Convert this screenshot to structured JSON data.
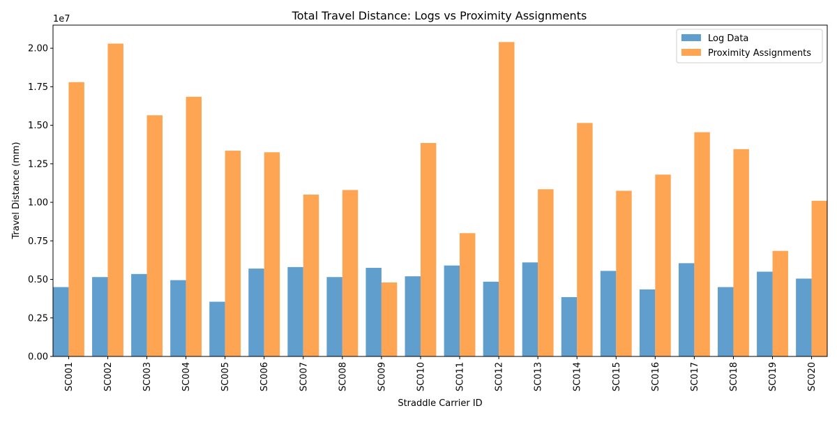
{
  "chart_data": {
    "type": "bar",
    "title": "Total Travel Distance: Logs vs Proximity Assignments",
    "xlabel": "Straddle Carrier ID",
    "ylabel": "Travel Distance (mm)",
    "y_offset_label": "1e7",
    "y_multiplier": 10000000,
    "ylim": [
      0,
      2.15
    ],
    "yticks": [
      "0.00",
      "0.25",
      "0.50",
      "0.75",
      "1.00",
      "1.25",
      "1.50",
      "1.75",
      "2.00"
    ],
    "grid": false,
    "legend_position": "top-right",
    "categories": [
      "SC001",
      "SC002",
      "SC003",
      "SC004",
      "SC005",
      "SC006",
      "SC007",
      "SC008",
      "SC009",
      "SC010",
      "SC011",
      "SC012",
      "SC013",
      "SC014",
      "SC015",
      "SC016",
      "SC017",
      "SC018",
      "SC019",
      "SC020"
    ],
    "series": [
      {
        "name": "Log Data",
        "color": "#5f9ecd",
        "values": [
          0.45,
          0.515,
          0.535,
          0.495,
          0.355,
          0.57,
          0.58,
          0.515,
          0.575,
          0.52,
          0.59,
          0.485,
          0.61,
          0.385,
          0.555,
          0.435,
          0.605,
          0.45,
          0.55,
          0.505
        ]
      },
      {
        "name": "Proximity Assignments",
        "color": "#fea553",
        "values": [
          1.78,
          2.03,
          1.565,
          1.685,
          1.335,
          1.325,
          1.05,
          1.08,
          0.48,
          1.385,
          0.8,
          2.04,
          1.085,
          1.515,
          1.075,
          1.18,
          1.455,
          1.345,
          0.685,
          1.01
        ]
      }
    ]
  }
}
